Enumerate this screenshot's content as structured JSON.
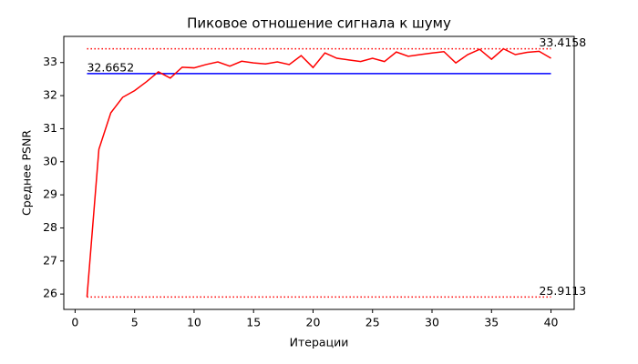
{
  "chart_data": {
    "type": "line",
    "title": "Пиковое отношение сигнала к шуму",
    "xlabel": "Итерации",
    "ylabel": "Среднее PSNR",
    "x": [
      1,
      2,
      3,
      4,
      5,
      6,
      7,
      8,
      9,
      10,
      11,
      12,
      13,
      14,
      15,
      16,
      17,
      18,
      19,
      20,
      21,
      22,
      23,
      24,
      25,
      26,
      27,
      28,
      29,
      30,
      31,
      32,
      33,
      34,
      35,
      36,
      37,
      38,
      39,
      40
    ],
    "series": [
      {
        "color": "#ff0000",
        "values": [
          25.9113,
          30.38,
          31.48,
          31.95,
          32.15,
          32.42,
          32.72,
          32.53,
          32.86,
          32.84,
          32.94,
          33.02,
          32.89,
          33.04,
          32.99,
          32.96,
          33.02,
          32.94,
          33.21,
          32.85,
          33.29,
          33.13,
          33.08,
          33.03,
          33.13,
          33.03,
          33.32,
          33.19,
          33.24,
          33.29,
          33.33,
          32.99,
          33.24,
          33.4,
          33.1,
          33.4158,
          33.24,
          33.31,
          33.34,
          33.13
        ]
      }
    ],
    "hlines": [
      {
        "y": 32.6652,
        "color": "#0000ff",
        "style": "solid"
      },
      {
        "y": 33.4158,
        "color": "#ff0000",
        "style": "dotted"
      },
      {
        "y": 25.9113,
        "color": "#ff0000",
        "style": "dotted"
      }
    ],
    "xlim": [
      -0.95,
      41.95
    ],
    "ylim": [
      25.536,
      33.791
    ],
    "xticks": [
      0,
      5,
      10,
      15,
      20,
      25,
      30,
      35,
      40
    ],
    "yticks": [
      26,
      27,
      28,
      29,
      30,
      31,
      32,
      33
    ]
  }
}
